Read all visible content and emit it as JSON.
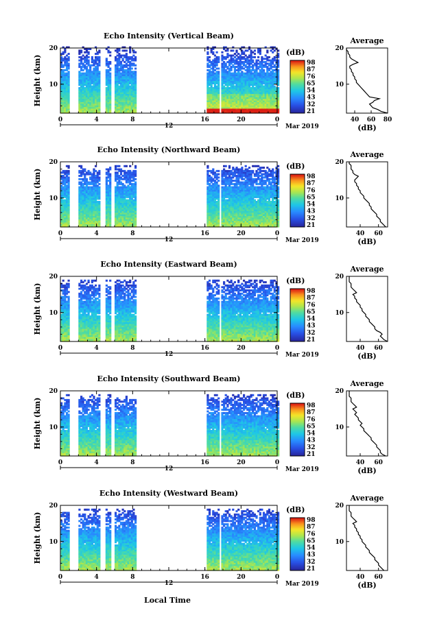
{
  "figure": {
    "date_label": "Mar 2019",
    "xlabel": "Local Time",
    "day_marker": "12",
    "average_title": "Average",
    "average_xlabel": "(dB)",
    "colorbar_title": "(dB)",
    "ylabel": "Height (km)"
  },
  "chart_data": [
    {
      "type": "heatmap",
      "title": "Echo Intensity (Vertical Beam)",
      "xlabel": "Local Time",
      "ylabel": "Height (km)",
      "x_ticks": [
        "0",
        "4",
        "8",
        "12",
        "16",
        "20",
        "0"
      ],
      "y_ticks": [
        "10",
        "20"
      ],
      "xlim": [
        0,
        24
      ],
      "ylim": [
        2,
        20
      ],
      "data_top_km": 20,
      "gaps_hours": [
        [
          0.0,
          0.1
        ],
        [
          1.0,
          2.0
        ],
        [
          4.5,
          5.0
        ],
        [
          5.7,
          6.0
        ],
        [
          8.5,
          16.2
        ],
        [
          17.5,
          17.8
        ]
      ],
      "colorbar": {
        "label": "(dB)",
        "ticks": [
          "98",
          "87",
          "76",
          "65",
          "54",
          "43",
          "32",
          "21"
        ]
      },
      "average_profile": {
        "title": "Average",
        "xlabel": "(dB)",
        "x_ticks": [
          "40",
          "60",
          "80"
        ],
        "xlim": [
          30,
          80
        ],
        "y_ticks": [
          "10",
          "20"
        ],
        "ylim": [
          2,
          20
        ],
        "height_km": [
          2,
          2.5,
          3,
          3.5,
          4,
          4.5,
          5,
          5.5,
          6,
          6.5,
          7,
          7.5,
          8,
          8.5,
          9,
          9.5,
          10,
          10.5,
          11,
          11.5,
          12,
          12.5,
          13,
          13.5,
          14,
          14.5,
          15,
          15.5,
          16,
          16.5,
          17,
          17.5,
          18,
          18.5,
          19,
          19.5,
          20
        ],
        "value_db": [
          80,
          72,
          68,
          62,
          60,
          58,
          62,
          64,
          70,
          58,
          56,
          54,
          52,
          50,
          48,
          46,
          44,
          42,
          42,
          40,
          40,
          38,
          38,
          36,
          36,
          34,
          34,
          38,
          44,
          40,
          36,
          34,
          34,
          32,
          32,
          30,
          30
        ]
      }
    },
    {
      "type": "heatmap",
      "title": "Echo Intensity (Northward Beam)",
      "xlabel": "Local Time",
      "ylabel": "Height (km)",
      "x_ticks": [
        "0",
        "4",
        "8",
        "12",
        "16",
        "20",
        "0"
      ],
      "y_ticks": [
        "10",
        "20"
      ],
      "xlim": [
        0,
        24
      ],
      "ylim": [
        2,
        20
      ],
      "data_top_km": 19,
      "gaps_hours": [
        [
          0.0,
          0.1
        ],
        [
          1.0,
          2.0
        ],
        [
          4.5,
          5.0
        ],
        [
          5.7,
          6.0
        ],
        [
          8.5,
          16.2
        ],
        [
          17.5,
          17.8
        ]
      ],
      "colorbar": {
        "label": "(dB)",
        "ticks": [
          "98",
          "87",
          "76",
          "65",
          "54",
          "43",
          "32",
          "21"
        ]
      },
      "average_profile": {
        "title": "Average",
        "xlabel": "(dB)",
        "x_ticks": [
          "40",
          "60"
        ],
        "xlim": [
          25,
          70
        ],
        "y_ticks": [
          "10",
          "20"
        ],
        "ylim": [
          2,
          20
        ],
        "height_km": [
          2,
          2.5,
          3,
          3.5,
          4,
          4.5,
          5,
          5.5,
          6,
          6.5,
          7,
          7.5,
          8,
          8.5,
          9,
          9.5,
          10,
          10.5,
          11,
          11.5,
          12,
          12.5,
          13,
          13.5,
          14,
          14.5,
          15,
          15.5,
          16,
          16.5,
          17,
          17.5,
          18,
          18.5,
          19,
          19.5,
          20
        ],
        "value_db": [
          68,
          66,
          64,
          62,
          62,
          60,
          58,
          58,
          56,
          54,
          52,
          52,
          50,
          50,
          48,
          46,
          44,
          44,
          42,
          40,
          40,
          38,
          38,
          36,
          36,
          34,
          34,
          36,
          38,
          34,
          32,
          32,
          30,
          30,
          30,
          28,
          28
        ]
      }
    },
    {
      "type": "heatmap",
      "title": "Echo Intensity (Eastward Beam)",
      "xlabel": "Local Time",
      "ylabel": "Height (km)",
      "x_ticks": [
        "0",
        "4",
        "8",
        "12",
        "16",
        "20",
        "0"
      ],
      "y_ticks": [
        "10",
        "20"
      ],
      "xlim": [
        0,
        24
      ],
      "ylim": [
        2,
        20
      ],
      "data_top_km": 19,
      "gaps_hours": [
        [
          0.0,
          0.1
        ],
        [
          1.0,
          2.0
        ],
        [
          4.5,
          5.0
        ],
        [
          5.7,
          6.0
        ],
        [
          8.5,
          16.2
        ],
        [
          17.5,
          17.8
        ]
      ],
      "colorbar": {
        "label": "(dB)",
        "ticks": [
          "98",
          "87",
          "76",
          "65",
          "54",
          "43",
          "32",
          "21"
        ]
      },
      "average_profile": {
        "title": "Average",
        "xlabel": "(dB)",
        "x_ticks": [
          "40",
          "60"
        ],
        "xlim": [
          25,
          70
        ],
        "y_ticks": [
          "10",
          "20"
        ],
        "ylim": [
          2,
          20
        ],
        "height_km": [
          2,
          2.5,
          3,
          3.5,
          4,
          4.5,
          5,
          5.5,
          6,
          6.5,
          7,
          7.5,
          8,
          8.5,
          9,
          9.5,
          10,
          10.5,
          11,
          11.5,
          12,
          12.5,
          13,
          13.5,
          14,
          14.5,
          15,
          15.5,
          16,
          16.5,
          17,
          17.5,
          18,
          18.5,
          19,
          19.5,
          20
        ],
        "value_db": [
          70,
          66,
          64,
          62,
          64,
          62,
          58,
          56,
          56,
          54,
          52,
          50,
          50,
          48,
          46,
          46,
          44,
          42,
          42,
          40,
          40,
          38,
          36,
          36,
          34,
          34,
          32,
          36,
          34,
          32,
          30,
          30,
          30,
          28,
          28,
          28,
          28
        ]
      }
    },
    {
      "type": "heatmap",
      "title": "Echo Intensity (Southward Beam)",
      "xlabel": "Local Time",
      "ylabel": "Height (km)",
      "x_ticks": [
        "0",
        "4",
        "8",
        "12",
        "16",
        "20",
        "0"
      ],
      "y_ticks": [
        "10",
        "20"
      ],
      "xlim": [
        0,
        24
      ],
      "ylim": [
        2,
        20
      ],
      "data_top_km": 19,
      "gaps_hours": [
        [
          0.0,
          0.1
        ],
        [
          1.0,
          2.0
        ],
        [
          4.5,
          5.0
        ],
        [
          5.7,
          6.0
        ],
        [
          8.5,
          16.2
        ],
        [
          17.5,
          17.8
        ]
      ],
      "colorbar": {
        "label": "(dB)",
        "ticks": [
          "98",
          "87",
          "76",
          "65",
          "54",
          "43",
          "32",
          "21"
        ]
      },
      "average_profile": {
        "title": "Average",
        "xlabel": "(dB)",
        "x_ticks": [
          "40",
          "60"
        ],
        "xlim": [
          25,
          70
        ],
        "y_ticks": [
          "10",
          "20"
        ],
        "ylim": [
          2,
          20
        ],
        "height_km": [
          2,
          2.5,
          3,
          3.5,
          4,
          4.5,
          5,
          5.5,
          6,
          6.5,
          7,
          7.5,
          8,
          8.5,
          9,
          9.5,
          10,
          10.5,
          11,
          11.5,
          12,
          12.5,
          13,
          13.5,
          14,
          14.5,
          15,
          15.5,
          16,
          16.5,
          17,
          17.5,
          18,
          18.5,
          19,
          19.5,
          20
        ],
        "value_db": [
          68,
          64,
          62,
          62,
          60,
          58,
          58,
          56,
          54,
          52,
          52,
          50,
          48,
          46,
          44,
          44,
          42,
          40,
          42,
          40,
          38,
          38,
          36,
          34,
          36,
          34,
          32,
          36,
          34,
          32,
          30,
          30,
          30,
          28,
          28,
          28,
          28
        ]
      }
    },
    {
      "type": "heatmap",
      "title": "Echo Intensity (Westward Beam)",
      "xlabel": "Local Time",
      "ylabel": "Height (km)",
      "x_ticks": [
        "0",
        "4",
        "8",
        "12",
        "16",
        "20",
        "0"
      ],
      "y_ticks": [
        "10",
        "20"
      ],
      "xlim": [
        0,
        24
      ],
      "ylim": [
        2,
        20
      ],
      "data_top_km": 19,
      "gaps_hours": [
        [
          0.0,
          0.1
        ],
        [
          1.0,
          2.0
        ],
        [
          4.5,
          5.0
        ],
        [
          5.7,
          6.0
        ],
        [
          8.5,
          16.2
        ],
        [
          17.5,
          17.8
        ]
      ],
      "colorbar": {
        "label": "(dB)",
        "ticks": [
          "98",
          "87",
          "76",
          "65",
          "54",
          "43",
          "32",
          "21"
        ]
      },
      "average_profile": {
        "title": "Average",
        "xlabel": "(dB)",
        "x_ticks": [
          "40",
          "60"
        ],
        "xlim": [
          25,
          70
        ],
        "y_ticks": [
          "10",
          "20"
        ],
        "ylim": [
          2,
          20
        ],
        "height_km": [
          2,
          2.5,
          3,
          3.5,
          4,
          4.5,
          5,
          5.5,
          6,
          6.5,
          7,
          7.5,
          8,
          8.5,
          9,
          9.5,
          10,
          10.5,
          11,
          11.5,
          12,
          12.5,
          13,
          13.5,
          14,
          14.5,
          15,
          15.5,
          16,
          16.5,
          17,
          17.5,
          18,
          18.5,
          19,
          19.5,
          20
        ],
        "value_db": [
          66,
          64,
          62,
          60,
          60,
          58,
          56,
          56,
          54,
          52,
          50,
          50,
          48,
          46,
          46,
          44,
          42,
          42,
          40,
          40,
          38,
          38,
          36,
          36,
          34,
          34,
          32,
          36,
          34,
          32,
          30,
          30,
          30,
          28,
          28,
          28,
          28
        ]
      }
    }
  ]
}
